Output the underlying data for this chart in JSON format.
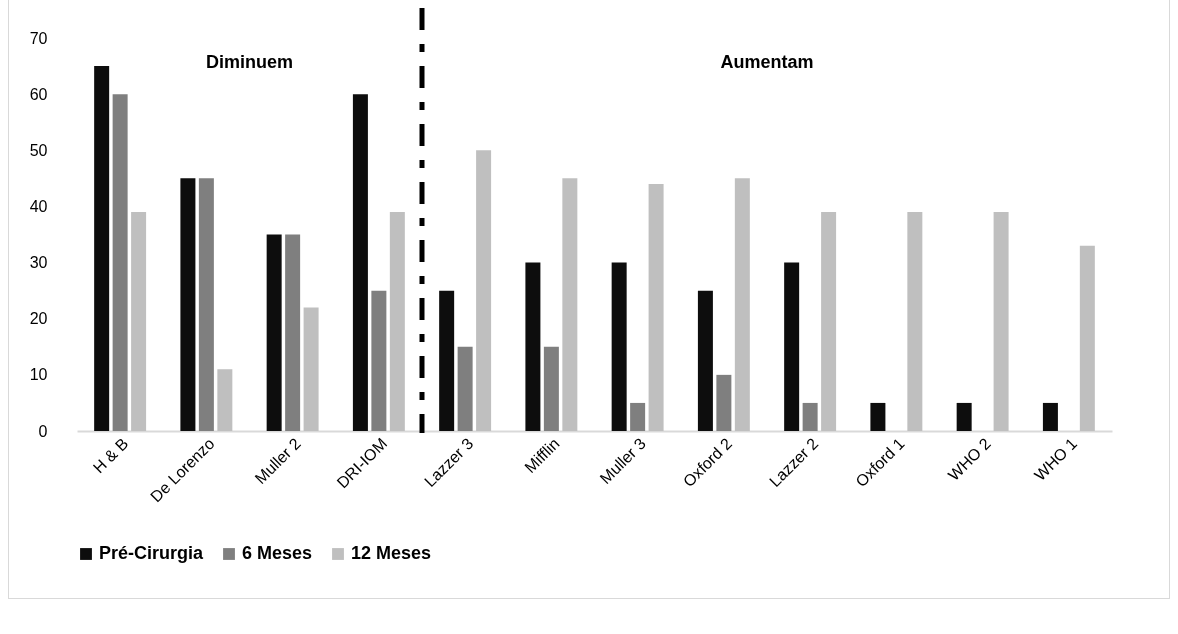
{
  "chart_data": {
    "type": "bar",
    "categories": [
      "H & B",
      "De Lorenzo",
      "Muller 2",
      "DRI-IOM",
      "Lazzer 3",
      "Mifflin",
      "Muller 3",
      "Oxford 2",
      "Lazzer 2",
      "Oxford 1",
      "WHO 2",
      "WHO 1"
    ],
    "series": [
      {
        "name": "Pré-Cirurgia",
        "color": "#0d0d0d",
        "values": [
          65,
          45,
          35,
          60,
          25,
          30,
          30,
          25,
          30,
          5,
          5,
          5
        ]
      },
      {
        "name": "6 Meses",
        "color": "#7f7f7f",
        "values": [
          60,
          45,
          35,
          25,
          15,
          15,
          5,
          10,
          5,
          null,
          null,
          null
        ]
      },
      {
        "name": "12 Meses",
        "color": "#bfbfbf",
        "values": [
          39,
          11,
          22,
          39,
          50,
          45,
          44,
          45,
          39,
          39,
          39,
          33
        ]
      }
    ],
    "ylim": [
      0,
      70
    ],
    "yticks": [
      0,
      10,
      20,
      30,
      40,
      50,
      60,
      70
    ],
    "grid": false,
    "legend": "bottom",
    "annotations": [
      "Diminuem",
      "Aumentam"
    ]
  }
}
